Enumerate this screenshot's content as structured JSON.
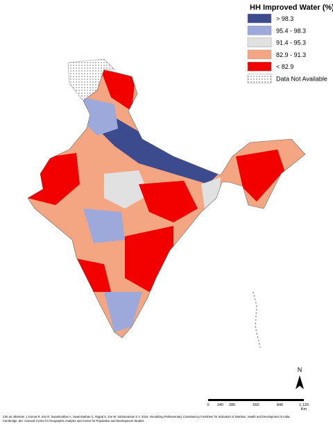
{
  "legend": {
    "title": "HH Improved Water (%)",
    "items": [
      {
        "label": "> 98.3",
        "color": "#3c4a8e"
      },
      {
        "label": "95.4 - 98.3",
        "color": "#9ca9da"
      },
      {
        "label": "91.4 - 95.3",
        "color": "#e1e1e1"
      },
      {
        "label": "82.9 - 91.3",
        "color": "#f4a683"
      },
      {
        "label": "< 82.9",
        "color": "#f20000"
      },
      {
        "label": "Data Not Available",
        "color": "dotted"
      }
    ]
  },
  "north_arrow": {
    "label": "N"
  },
  "scale_bar": {
    "labels": [
      "0",
      "140",
      "280",
      "560",
      "840",
      "1,120"
    ],
    "unit": "Km"
  },
  "citation": [
    "Cite as: Blossom J, Kumar R, Kim R, Swaminathan A, Swaminathan G, Rajpal S, Joe W, Subramanian S V. 2019. Visualizing Parliamentary Constituency Factsheet for Indicators of Nutrition, Health and Development in India.",
    "Cambridge, MA: Harvard Center for Geographic Analysis and Center for Population and Development Studies."
  ]
}
